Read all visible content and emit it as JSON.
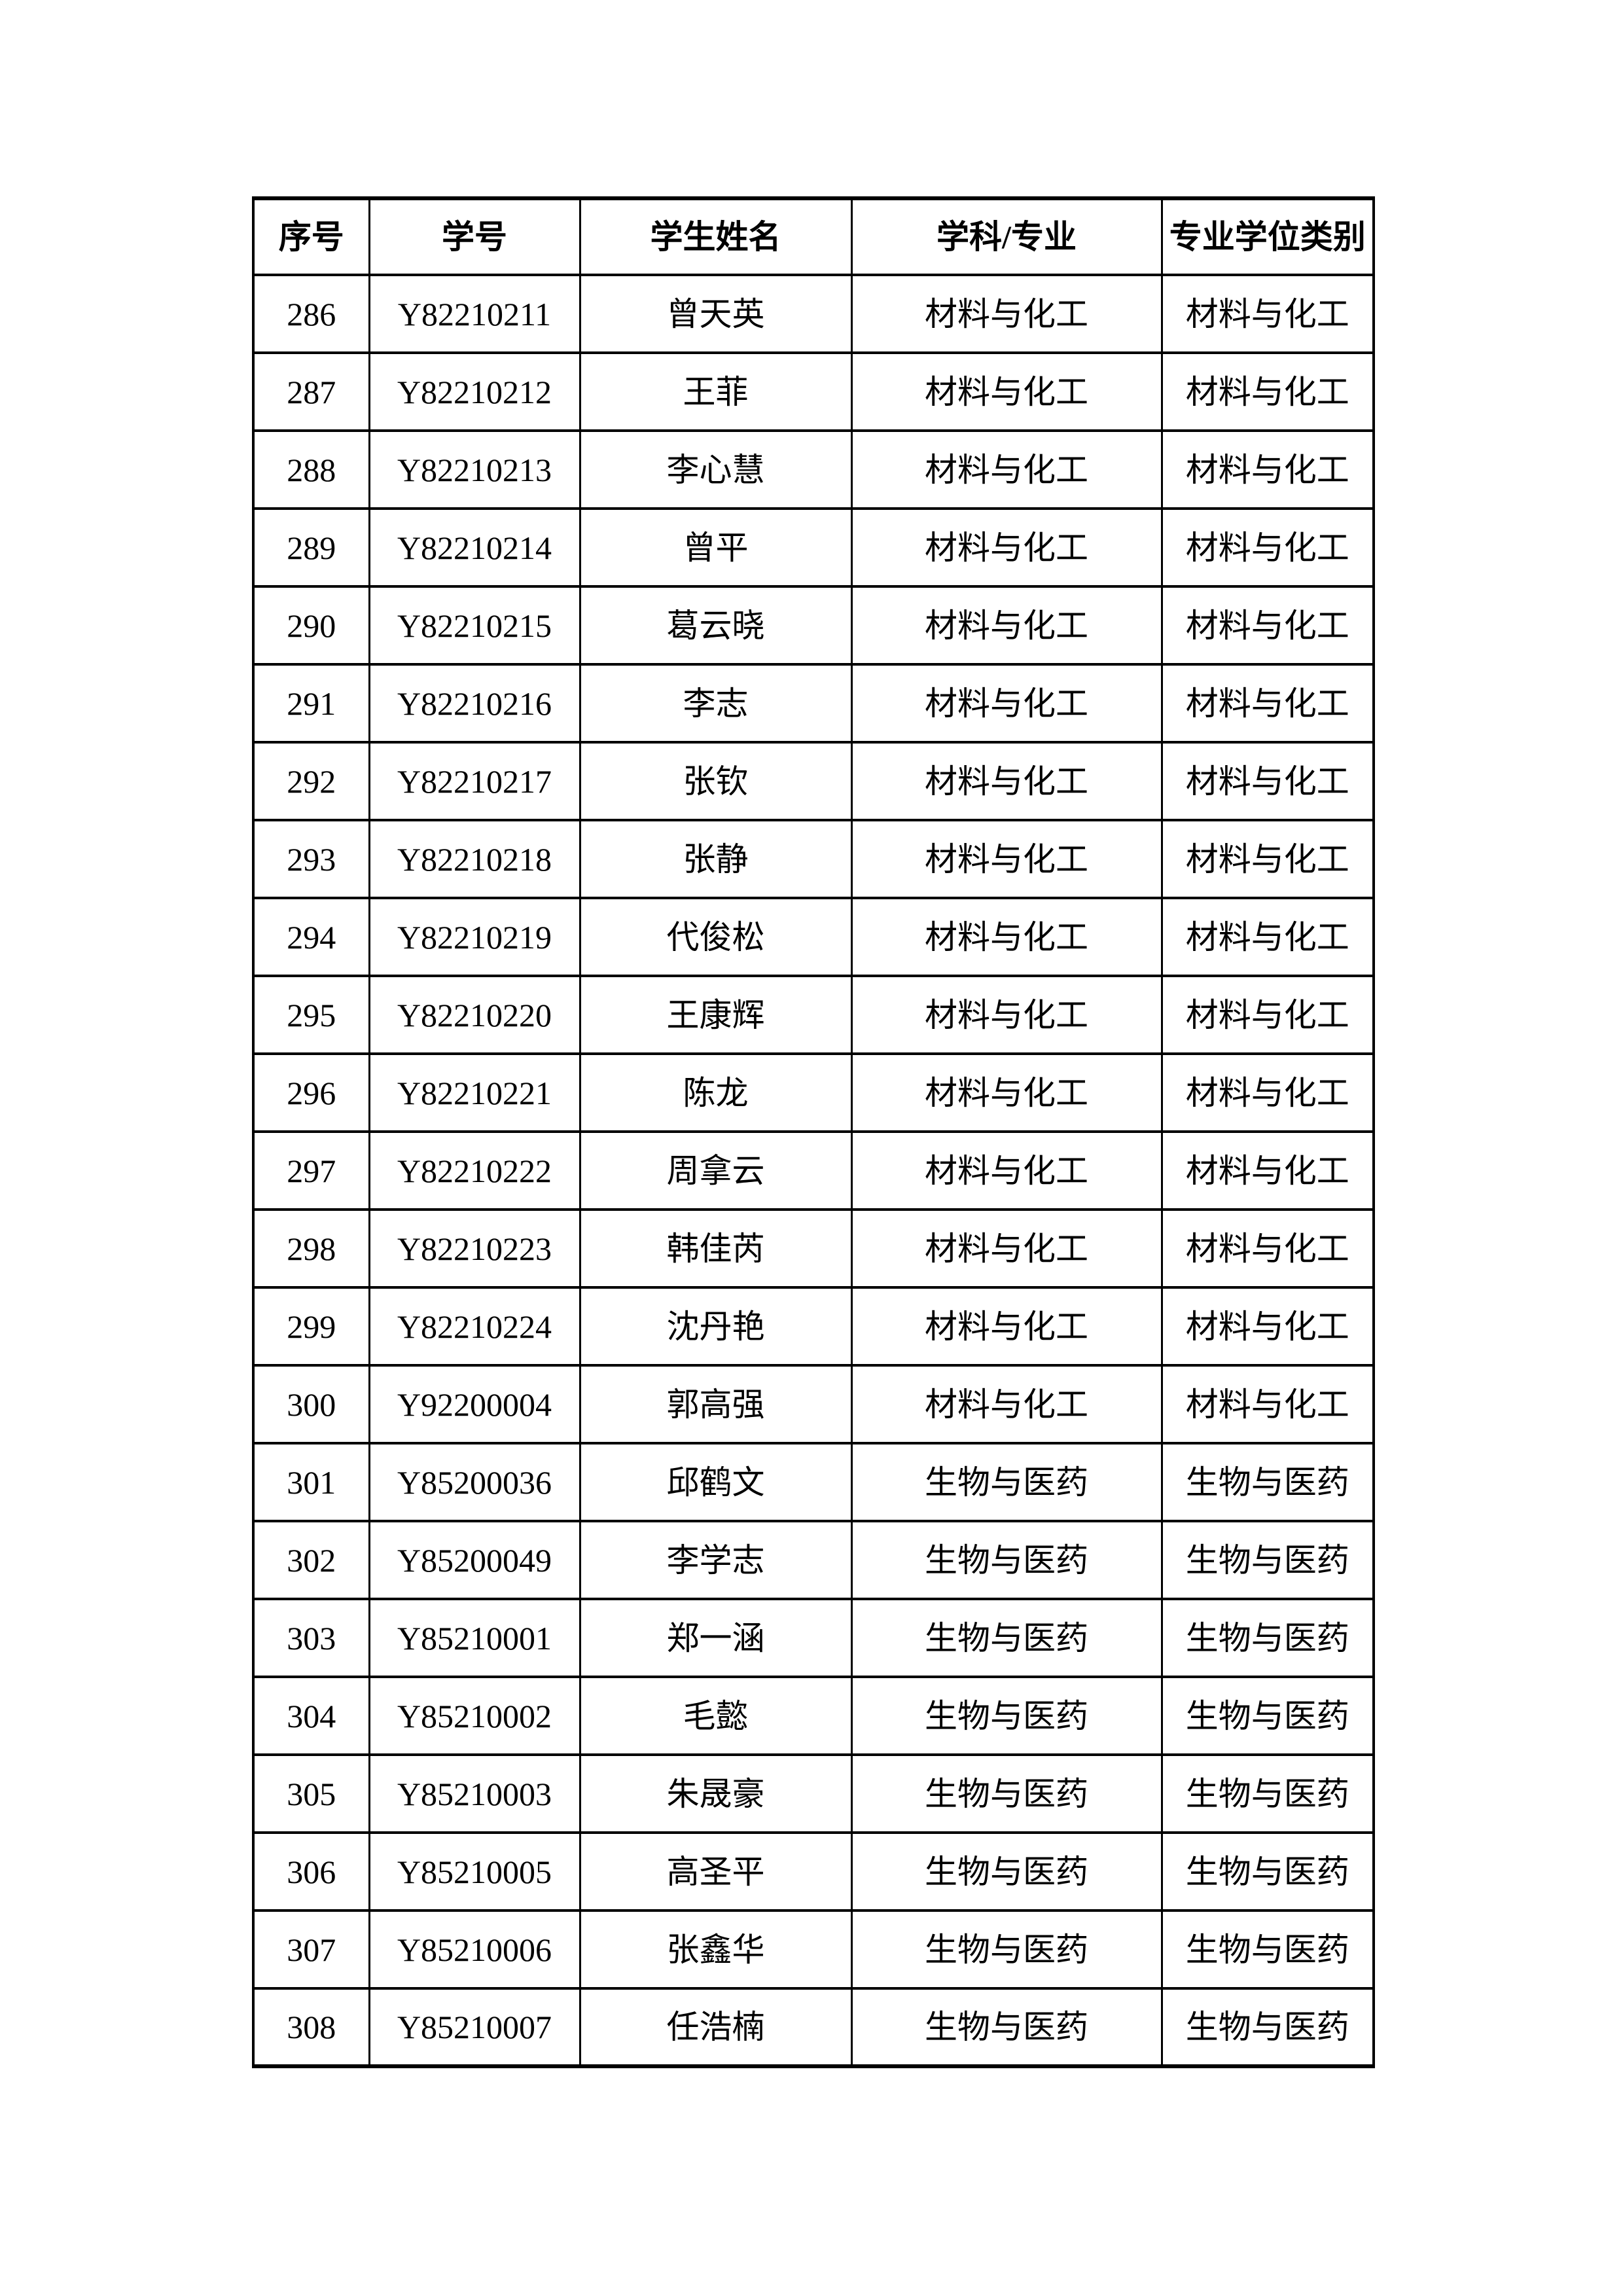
{
  "document": {
    "header": {
      "columns": [
        {
          "key": "no",
          "label": "序号"
        },
        {
          "key": "id",
          "label": "学号"
        },
        {
          "key": "name",
          "label": "学生姓名"
        },
        {
          "key": "major",
          "label": "学科/专业"
        },
        {
          "key": "category",
          "label": "专业学位类别"
        }
      ]
    },
    "rows": [
      {
        "no": "286",
        "id": "Y82210211",
        "name": "曾天英",
        "major": "材料与化工",
        "category": "材料与化工"
      },
      {
        "no": "287",
        "id": "Y82210212",
        "name": "王菲",
        "major": "材料与化工",
        "category": "材料与化工"
      },
      {
        "no": "288",
        "id": "Y82210213",
        "name": "李心慧",
        "major": "材料与化工",
        "category": "材料与化工"
      },
      {
        "no": "289",
        "id": "Y82210214",
        "name": "曾平",
        "major": "材料与化工",
        "category": "材料与化工"
      },
      {
        "no": "290",
        "id": "Y82210215",
        "name": "葛云晓",
        "major": "材料与化工",
        "category": "材料与化工"
      },
      {
        "no": "291",
        "id": "Y82210216",
        "name": "李志",
        "major": "材料与化工",
        "category": "材料与化工"
      },
      {
        "no": "292",
        "id": "Y82210217",
        "name": "张钦",
        "major": "材料与化工",
        "category": "材料与化工"
      },
      {
        "no": "293",
        "id": "Y82210218",
        "name": "张静",
        "major": "材料与化工",
        "category": "材料与化工"
      },
      {
        "no": "294",
        "id": "Y82210219",
        "name": "代俊松",
        "major": "材料与化工",
        "category": "材料与化工"
      },
      {
        "no": "295",
        "id": "Y82210220",
        "name": "王康辉",
        "major": "材料与化工",
        "category": "材料与化工"
      },
      {
        "no": "296",
        "id": "Y82210221",
        "name": "陈龙",
        "major": "材料与化工",
        "category": "材料与化工"
      },
      {
        "no": "297",
        "id": "Y82210222",
        "name": "周拿云",
        "major": "材料与化工",
        "category": "材料与化工"
      },
      {
        "no": "298",
        "id": "Y82210223",
        "name": "韩佳芮",
        "major": "材料与化工",
        "category": "材料与化工"
      },
      {
        "no": "299",
        "id": "Y82210224",
        "name": "沈丹艳",
        "major": "材料与化工",
        "category": "材料与化工"
      },
      {
        "no": "300",
        "id": "Y92200004",
        "name": "郭高强",
        "major": "材料与化工",
        "category": "材料与化工"
      },
      {
        "no": "301",
        "id": "Y85200036",
        "name": "邱鹤文",
        "major": "生物与医药",
        "category": "生物与医药"
      },
      {
        "no": "302",
        "id": "Y85200049",
        "name": "李学志",
        "major": "生物与医药",
        "category": "生物与医药"
      },
      {
        "no": "303",
        "id": "Y85210001",
        "name": "郑一涵",
        "major": "生物与医药",
        "category": "生物与医药"
      },
      {
        "no": "304",
        "id": "Y85210002",
        "name": "毛懿",
        "major": "生物与医药",
        "category": "生物与医药"
      },
      {
        "no": "305",
        "id": "Y85210003",
        "name": "朱晟豪",
        "major": "生物与医药",
        "category": "生物与医药"
      },
      {
        "no": "306",
        "id": "Y85210005",
        "name": "高圣平",
        "major": "生物与医药",
        "category": "生物与医药"
      },
      {
        "no": "307",
        "id": "Y85210006",
        "name": "张鑫华",
        "major": "生物与医药",
        "category": "生物与医药"
      },
      {
        "no": "308",
        "id": "Y85210007",
        "name": "任浩楠",
        "major": "生物与医药",
        "category": "生物与医药"
      }
    ]
  }
}
